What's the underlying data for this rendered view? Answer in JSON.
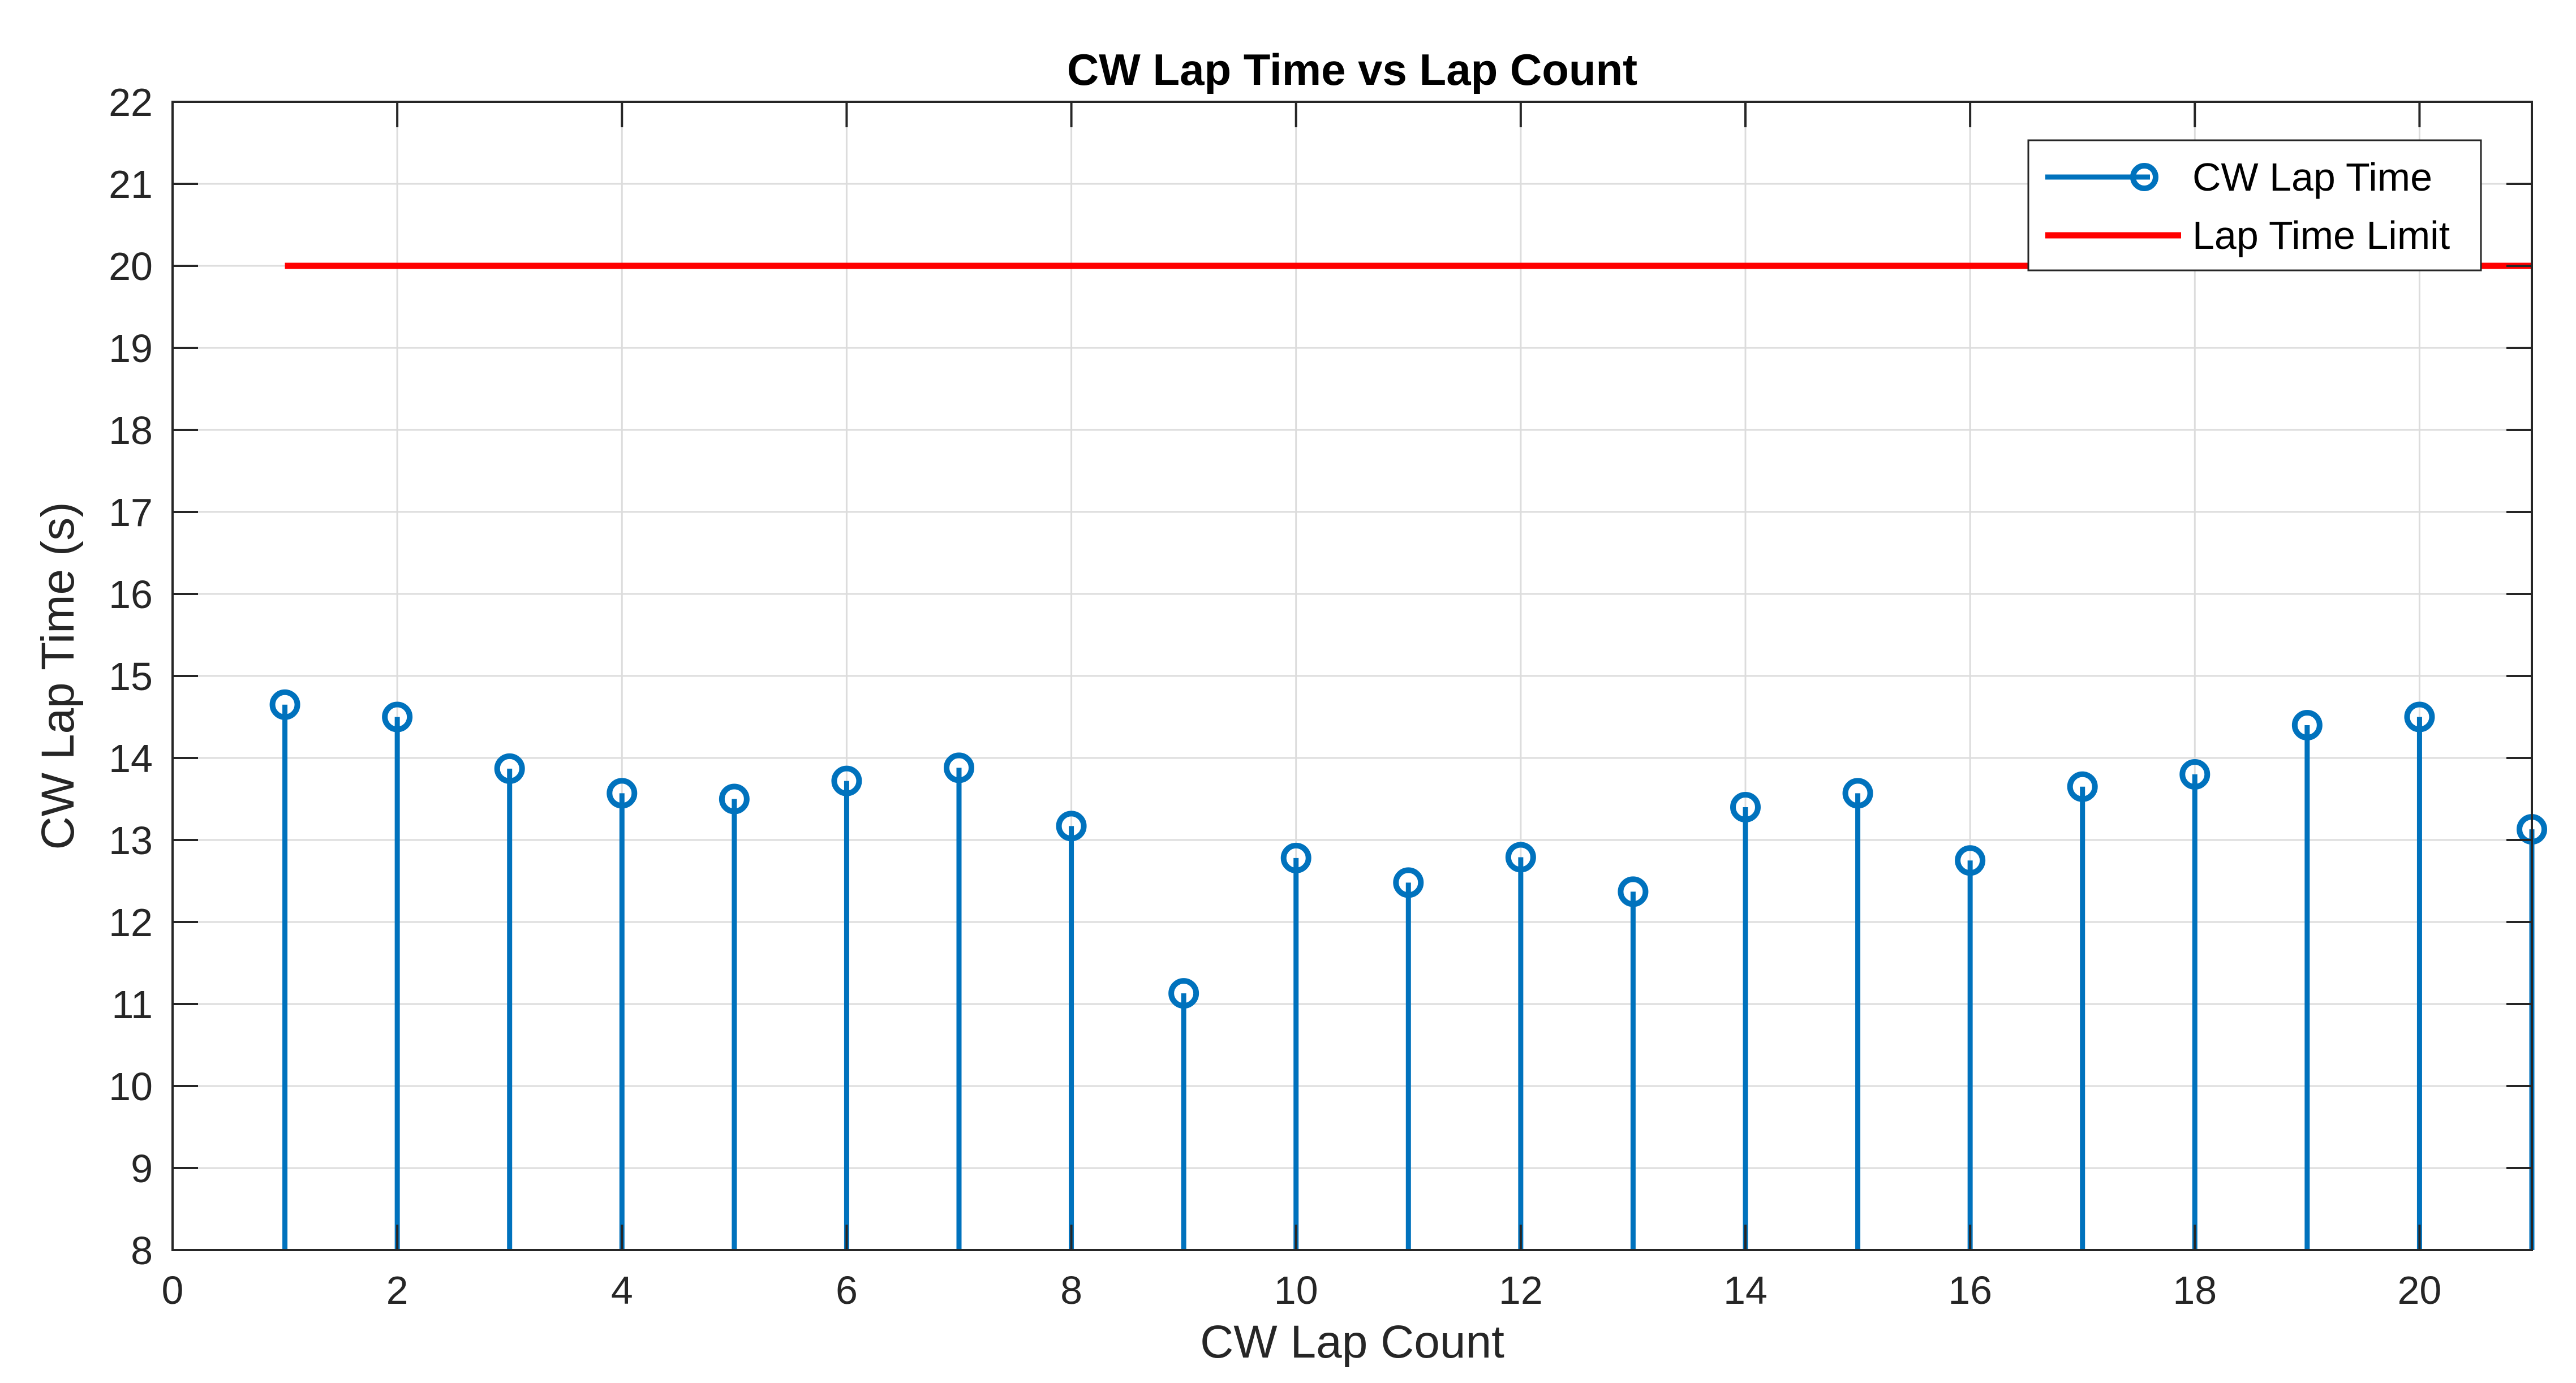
{
  "chart_data": {
    "type": "stem",
    "title": "CW Lap Time vs Lap Count",
    "xlabel": "CW Lap Count",
    "ylabel": "CW Lap Time (s)",
    "xlim": [
      0,
      21
    ],
    "ylim": [
      8,
      22
    ],
    "xticks": [
      "0",
      "2",
      "4",
      "6",
      "8",
      "10",
      "12",
      "14",
      "16",
      "18",
      "20"
    ],
    "yticks": [
      "8",
      "9",
      "10",
      "11",
      "12",
      "13",
      "14",
      "15",
      "16",
      "17",
      "18",
      "19",
      "20",
      "21",
      "22"
    ],
    "grid": true,
    "legend_position": "top-right",
    "series": [
      {
        "name": "CW Lap Time",
        "color": "#0072BD",
        "x": [
          1,
          2,
          3,
          4,
          5,
          6,
          7,
          8,
          9,
          10,
          11,
          12,
          13,
          14,
          15,
          16,
          17,
          18,
          19,
          20,
          21
        ],
        "values": [
          14.65,
          14.5,
          13.87,
          13.57,
          13.5,
          13.72,
          13.88,
          13.17,
          11.13,
          12.78,
          12.48,
          12.79,
          12.37,
          13.4,
          13.57,
          12.75,
          13.65,
          13.8,
          14.4,
          14.5,
          13.13
        ]
      },
      {
        "name": "Lap Time Limit",
        "color": "#FF0000",
        "x": [
          1,
          21
        ],
        "values": [
          20,
          20
        ]
      }
    ]
  }
}
